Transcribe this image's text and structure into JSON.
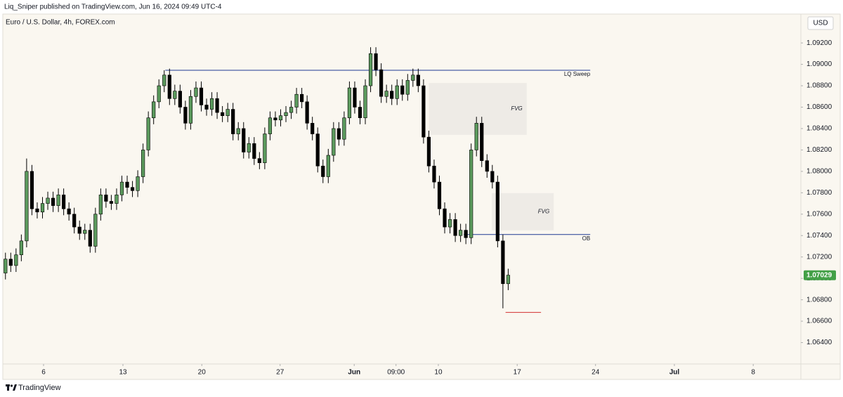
{
  "header": {
    "text": "Liq_Sniper published on TradingView.com, Jun 16, 2024 09:49 UTC-4"
  },
  "footer": {
    "brand": "TradingView"
  },
  "chart_data": {
    "type": "candlestick",
    "title": "Euro / U.S. Dollar, 4h, FOREX.com",
    "currency": "USD",
    "up_color": "#5b9a5d",
    "down_color": "#000000",
    "xlim": [
      -0.5,
      150.3
    ],
    "xticks": [
      {
        "value": 7.2,
        "label": "6"
      },
      {
        "value": 22.2,
        "label": "13"
      },
      {
        "value": 37.1,
        "label": "20"
      },
      {
        "value": 51.9,
        "label": "27"
      },
      {
        "value": 65.9,
        "label": "Jun"
      },
      {
        "value": 73.8,
        "label": "09:00"
      },
      {
        "value": 81.8,
        "label": "10"
      },
      {
        "value": 96.7,
        "label": "17"
      },
      {
        "value": 111.5,
        "label": "24"
      },
      {
        "value": 126.4,
        "label": "Jul"
      },
      {
        "value": 141.3,
        "label": "8"
      }
    ],
    "ylim": [
      1.062,
      1.0947
    ],
    "yticks": [
      {
        "value": 1.092,
        "label": "1.09200"
      },
      {
        "value": 1.09,
        "label": "1.09000"
      },
      {
        "value": 1.088,
        "label": "1.08800"
      },
      {
        "value": 1.086,
        "label": "1.08600"
      },
      {
        "value": 1.084,
        "label": "1.08400"
      },
      {
        "value": 1.082,
        "label": "1.08200"
      },
      {
        "value": 1.08,
        "label": "1.08000"
      },
      {
        "value": 1.078,
        "label": "1.07800"
      },
      {
        "value": 1.076,
        "label": "1.07600"
      },
      {
        "value": 1.074,
        "label": "1.07400"
      },
      {
        "value": 1.072,
        "label": "1.07200"
      },
      {
        "value": 1.07,
        "label": "1.07000"
      },
      {
        "value": 1.068,
        "label": "1.06800"
      },
      {
        "value": 1.066,
        "label": "1.06600"
      },
      {
        "value": 1.064,
        "label": "1.06400"
      }
    ],
    "open": [
      1.0705,
      1.0718,
      1.0712,
      1.0722,
      1.0735,
      1.08,
      1.0765,
      1.0762,
      1.077,
      1.0775,
      1.0768,
      1.0778,
      1.0765,
      1.076,
      1.0748,
      1.0742,
      1.0745,
      1.073,
      1.076,
      1.0778,
      1.0772,
      1.077,
      1.0778,
      1.079,
      1.0785,
      1.0782,
      1.0795,
      1.082,
      1.085,
      1.0865,
      1.088,
      1.089,
      1.0868,
      1.0875,
      1.086,
      1.0845,
      1.087,
      1.0878,
      1.0862,
      1.0858,
      1.0868,
      1.0855,
      1.0852,
      1.0858,
      1.0835,
      1.084,
      1.0818,
      1.0826,
      1.0812,
      1.0808,
      1.0835,
      1.085,
      1.0848,
      1.0852,
      1.0855,
      1.086,
      1.0872,
      1.0865,
      1.0845,
      1.0835,
      1.0805,
      1.0795,
      1.0815,
      1.084,
      1.083,
      1.085,
      1.0878,
      1.086,
      1.085,
      1.088,
      1.091,
      1.0895,
      1.087,
      1.0875,
      1.0868,
      1.088,
      1.0872,
      1.0885,
      1.089,
      1.088,
      1.0832,
      1.0805,
      1.079,
      1.0765,
      1.0748,
      1.0755,
      1.074,
      1.0745,
      1.0738,
      1.082,
      1.0845,
      1.081,
      1.08,
      1.079,
      1.0735,
      1.0695
    ],
    "high": [
      1.0724,
      1.0724,
      1.0728,
      1.0741,
      1.0812,
      1.0806,
      1.0771,
      1.0776,
      1.0781,
      1.0781,
      1.0784,
      1.0784,
      1.0771,
      1.0766,
      1.0754,
      1.0751,
      1.0751,
      1.0766,
      1.0784,
      1.0784,
      1.0778,
      1.0784,
      1.0796,
      1.0796,
      1.0791,
      1.0801,
      1.0826,
      1.0856,
      1.0871,
      1.0886,
      1.08945,
      1.0896,
      1.0881,
      1.0881,
      1.0866,
      1.0876,
      1.0884,
      1.0884,
      1.0868,
      1.0874,
      1.0874,
      1.0861,
      1.0864,
      1.0864,
      1.0846,
      1.0846,
      1.0832,
      1.0832,
      1.0818,
      1.0841,
      1.0856,
      1.0856,
      1.0858,
      1.0861,
      1.0866,
      1.0878,
      1.0878,
      1.0871,
      1.0851,
      1.0841,
      1.0811,
      1.0821,
      1.0846,
      1.0846,
      1.0856,
      1.0884,
      1.0884,
      1.0866,
      1.0886,
      1.0916,
      1.0916,
      1.0901,
      1.0881,
      1.0881,
      1.0886,
      1.0886,
      1.0891,
      1.0896,
      1.0896,
      1.0886,
      1.0838,
      1.0811,
      1.0796,
      1.0771,
      1.0761,
      1.0761,
      1.0751,
      1.0751,
      1.0826,
      1.0851,
      1.0851,
      1.0816,
      1.0806,
      1.0796,
      1.0741,
      1.0709
    ],
    "low": [
      1.0699,
      1.0706,
      1.0706,
      1.0716,
      1.0729,
      1.0759,
      1.0756,
      1.0756,
      1.0764,
      1.0762,
      1.0762,
      1.0759,
      1.0754,
      1.0742,
      1.0736,
      1.0736,
      1.0724,
      1.0724,
      1.0754,
      1.0766,
      1.0764,
      1.0764,
      1.0772,
      1.0779,
      1.0776,
      1.0776,
      1.0789,
      1.0814,
      1.0844,
      1.0859,
      1.0874,
      1.0862,
      1.0862,
      1.0854,
      1.0839,
      1.0839,
      1.0864,
      1.0856,
      1.0852,
      1.0852,
      1.0849,
      1.0846,
      1.0846,
      1.0829,
      1.0829,
      1.0812,
      1.0812,
      1.0806,
      1.0802,
      1.0802,
      1.0829,
      1.0842,
      1.0842,
      1.0846,
      1.0849,
      1.0854,
      1.0859,
      1.0839,
      1.0829,
      1.0799,
      1.0789,
      1.0789,
      1.0809,
      1.0824,
      1.0824,
      1.0844,
      1.0854,
      1.0844,
      1.0844,
      1.0874,
      1.0889,
      1.0864,
      1.0864,
      1.0862,
      1.0862,
      1.0866,
      1.0866,
      1.0879,
      1.0874,
      1.0826,
      1.0799,
      1.0784,
      1.0759,
      1.0742,
      1.0742,
      1.0734,
      1.0734,
      1.0732,
      1.0732,
      1.0814,
      1.0804,
      1.0794,
      1.0784,
      1.0729,
      1.0672,
      1.0689
    ],
    "close": [
      1.0718,
      1.0712,
      1.0722,
      1.0735,
      1.08,
      1.0765,
      1.0762,
      1.077,
      1.0775,
      1.0768,
      1.0778,
      1.0765,
      1.076,
      1.0748,
      1.0742,
      1.0745,
      1.073,
      1.076,
      1.0778,
      1.0772,
      1.077,
      1.0778,
      1.079,
      1.0785,
      1.0782,
      1.0795,
      1.082,
      1.085,
      1.0865,
      1.088,
      1.089,
      1.0868,
      1.0875,
      1.086,
      1.0845,
      1.087,
      1.0878,
      1.0862,
      1.0858,
      1.0868,
      1.0855,
      1.0852,
      1.0858,
      1.0835,
      1.084,
      1.0818,
      1.0826,
      1.0812,
      1.0808,
      1.0835,
      1.085,
      1.0848,
      1.0852,
      1.0855,
      1.086,
      1.0872,
      1.0865,
      1.0845,
      1.0835,
      1.0805,
      1.0795,
      1.0815,
      1.084,
      1.083,
      1.085,
      1.0878,
      1.086,
      1.085,
      1.088,
      1.091,
      1.0895,
      1.087,
      1.0875,
      1.0868,
      1.088,
      1.0872,
      1.0885,
      1.089,
      1.088,
      1.0832,
      1.0805,
      1.079,
      1.0765,
      1.0748,
      1.0755,
      1.074,
      1.0745,
      1.0738,
      1.082,
      1.0845,
      1.081,
      1.08,
      1.079,
      1.0735,
      1.0695,
      1.0703
    ],
    "last_price": 1.07029,
    "last_price_color": "#43a047",
    "hlines": [
      {
        "label": "LQ Sweep",
        "value": 1.08945,
        "x": [
          30.2,
          110.5
        ],
        "color": "#1f3a93"
      },
      {
        "label": "OB",
        "value": 1.0741,
        "x": [
          86.6,
          110.5
        ],
        "color": "#1f3a93"
      },
      {
        "value": 1.06682,
        "x": [
          94.5,
          101.2
        ],
        "color": "#d32f2f"
      }
    ],
    "zones": [
      {
        "label": "FVG",
        "y": [
          1.08341,
          1.08826
        ],
        "x": [
          80.0,
          98.5
        ],
        "color": "#eeebe6"
      },
      {
        "label": "FVG",
        "y": [
          1.07449,
          1.07797
        ],
        "x": [
          91.9,
          103.6
        ],
        "color": "#eeebe6"
      }
    ]
  }
}
